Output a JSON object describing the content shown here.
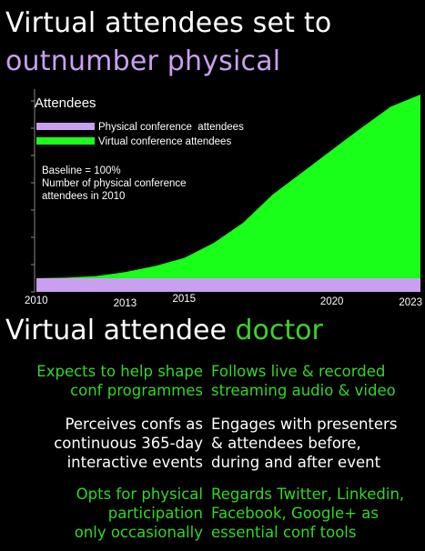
{
  "title": {
    "line1": "Virtual attendees set to",
    "line2": "outnumber physical"
  },
  "colors": {
    "physical": "#c9a0f0",
    "virtual": "#19ff19",
    "accent_green": "#33d629",
    "background": "#000000"
  },
  "chart_data": {
    "type": "area",
    "ylabel": "Attendees",
    "x_ticks": [
      "2010",
      "2013",
      "2015",
      "2020",
      "2023"
    ],
    "xlim": [
      2010,
      2023
    ],
    "series": [
      {
        "name": "Physical conference  attendees",
        "x": [
          2010,
          2023
        ],
        "values": [
          100,
          100
        ]
      },
      {
        "name": "Virtual conference attendees",
        "x": [
          2010,
          2011,
          2012,
          2013,
          2014,
          2015,
          2016,
          2017,
          2018,
          2019,
          2020,
          2021,
          2022,
          2023
        ],
        "values": [
          0,
          5,
          20,
          60,
          120,
          200,
          350,
          550,
          830,
          1050,
          1270,
          1490,
          1700,
          1820
        ]
      }
    ],
    "annotation": {
      "line1": "Baseline = 100%",
      "line2": "Number of physical conference",
      "line3": "attendees in 2010"
    }
  },
  "subtitle": {
    "text": "Virtual attendee ",
    "accent": "doctor"
  },
  "traits": {
    "left": [
      {
        "line1": "Expects to help shape",
        "line2": "conf programmes",
        "line3": ""
      },
      {
        "line1": "Perceives confs as",
        "line2": "continuous 365-day",
        "line3": "interactive events"
      },
      {
        "line1": "Opts for physical",
        "line2": "participation",
        "line3": "only occasionally"
      }
    ],
    "right": [
      {
        "line1": "Follows live & recorded",
        "line2": "streaming audio & video",
        "line3": ""
      },
      {
        "line1": "Engages with presenters",
        "line2": "& attendees before,",
        "line3": "during and after event"
      },
      {
        "line1": "Regards Twitter, Linkedin,",
        "line2": "Facebook, Google+ as",
        "line3": "essential conf tools"
      }
    ]
  }
}
